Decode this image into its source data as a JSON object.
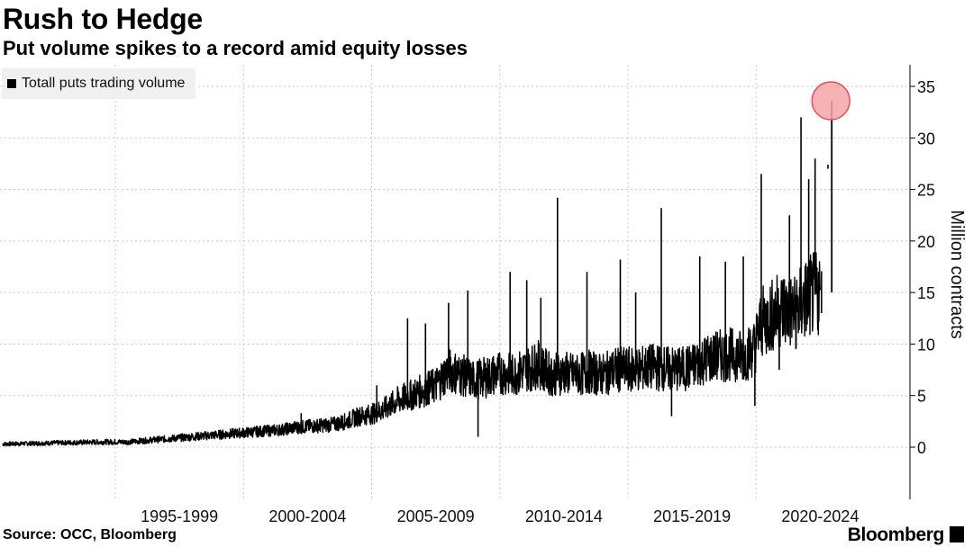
{
  "header": {
    "title": "Rush to Hedge",
    "subtitle": "Put volume spikes to a record amid equity losses"
  },
  "footer": {
    "source": "Source: OCC, Bloomberg",
    "brand": "Bloomberg"
  },
  "colors": {
    "line": "#000000",
    "grid": "#c8c8c8",
    "highlight_fill": "#f4a4a8",
    "highlight_stroke": "#e0505a",
    "legend_bg": "#f0f0f0"
  },
  "chart_data": {
    "type": "line",
    "title": "Rush to Hedge",
    "subtitle": "Put volume spikes to a record amid equity losses",
    "ylabel": "Million contracts",
    "xlabel": "",
    "ylim": [
      -3,
      37
    ],
    "yticks": [
      0,
      5,
      10,
      15,
      20,
      25,
      30,
      35
    ],
    "xlim": [
      1990.5,
      2026.0
    ],
    "xtick_labels": [
      {
        "label": "1995-1999",
        "center": 1997.5
      },
      {
        "label": "2000-2004",
        "center": 2002.5
      },
      {
        "label": "2005-2009",
        "center": 2007.5
      },
      {
        "label": "2010-2014",
        "center": 2012.5
      },
      {
        "label": "2015-2019",
        "center": 2017.5
      },
      {
        "label": "2020-2024",
        "center": 2022.5
      }
    ],
    "grid": true,
    "legend_position": "top-left",
    "highlight": {
      "x": 2022.95,
      "y": 33.6,
      "note": "record"
    },
    "series": [
      {
        "name": "Totall puts trading volume",
        "x": [
          1990.6,
          1991.5,
          1992.5,
          1993.5,
          1994.5,
          1995.5,
          1996.5,
          1997.5,
          1998.5,
          1999.5,
          2000.5,
          2001.0,
          2001.5,
          2002.0,
          2002.5,
          2003.0,
          2003.5,
          2004.0,
          2004.5,
          2005.0,
          2005.5,
          2006.0,
          2006.5,
          2007.0,
          2007.5,
          2008.0,
          2008.5,
          2009.0,
          2009.5,
          2010.0,
          2010.5,
          2011.0,
          2011.5,
          2012.0,
          2012.5,
          2013.0,
          2013.5,
          2014.0,
          2014.5,
          2015.0,
          2015.5,
          2016.0,
          2016.5,
          2017.0,
          2017.5,
          2018.0,
          2018.5,
          2019.0,
          2019.5,
          2019.9,
          2020.2,
          2020.5,
          2021.0,
          2021.5,
          2022.0,
          2022.5,
          2022.95
        ],
        "y": [
          0.3,
          0.35,
          0.4,
          0.45,
          0.5,
          0.5,
          0.7,
          0.9,
          1.1,
          1.3,
          1.5,
          1.6,
          1.7,
          1.9,
          2.0,
          2.1,
          2.2,
          2.5,
          3.0,
          3.2,
          3.7,
          4.5,
          5.0,
          5.5,
          6.0,
          7.5,
          7.0,
          6.5,
          6.8,
          7.2,
          7.0,
          7.5,
          8.0,
          7.0,
          7.2,
          7.0,
          7.3,
          7.0,
          7.5,
          7.5,
          7.6,
          7.8,
          7.6,
          7.5,
          7.8,
          8.5,
          8.8,
          9.0,
          8.8,
          9.5,
          12.0,
          12.5,
          13.5,
          13.0,
          14.5,
          15.0,
          33.6
        ]
      }
    ],
    "spikes": [
      {
        "x": 2002.25,
        "y": 3.3
      },
      {
        "x": 2005.2,
        "y": 6.0
      },
      {
        "x": 2006.4,
        "y": 12.5
      },
      {
        "x": 2007.1,
        "y": 12.0
      },
      {
        "x": 2008.0,
        "y": 14.0
      },
      {
        "x": 2008.75,
        "y": 15.2
      },
      {
        "x": 2009.15,
        "y": 1.0
      },
      {
        "x": 2010.4,
        "y": 17.0
      },
      {
        "x": 2011.05,
        "y": 16.2
      },
      {
        "x": 2011.6,
        "y": 14.5
      },
      {
        "x": 2012.25,
        "y": 24.2
      },
      {
        "x": 2013.4,
        "y": 17.0
      },
      {
        "x": 2014.7,
        "y": 18.2
      },
      {
        "x": 2015.3,
        "y": 15.0
      },
      {
        "x": 2016.3,
        "y": 23.2
      },
      {
        "x": 2016.7,
        "y": 3.0
      },
      {
        "x": 2017.8,
        "y": 18.5
      },
      {
        "x": 2018.8,
        "y": 18.0
      },
      {
        "x": 2019.5,
        "y": 18.5
      },
      {
        "x": 2019.95,
        "y": 4.0
      },
      {
        "x": 2020.2,
        "y": 26.5
      },
      {
        "x": 2020.9,
        "y": 7.5
      },
      {
        "x": 2021.3,
        "y": 22.5
      },
      {
        "x": 2021.55,
        "y": 9.5
      },
      {
        "x": 2021.75,
        "y": 32.0
      },
      {
        "x": 2022.05,
        "y": 26.0
      },
      {
        "x": 2022.3,
        "y": 28.0
      },
      {
        "x": 2022.55,
        "y": 13.0
      },
      {
        "x": 2022.8,
        "y": 27.0
      }
    ]
  }
}
